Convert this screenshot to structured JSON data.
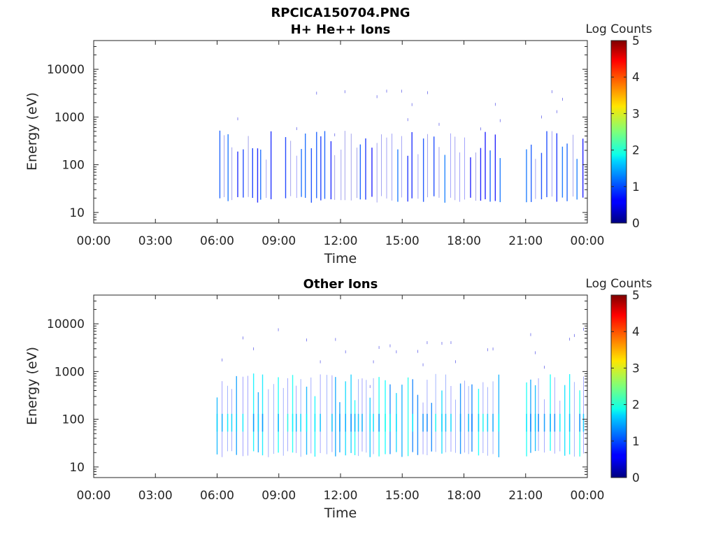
{
  "figure_title": "RPCICA150704.PNG",
  "chart_data": [
    {
      "type": "heatmap",
      "title": "H+ He++ Ions",
      "xlabel": "Time",
      "ylabel": "Energy (eV)",
      "x_ticks": [
        "00:00",
        "03:00",
        "06:00",
        "09:00",
        "12:00",
        "15:00",
        "18:00",
        "21:00",
        "00:00"
      ],
      "x_range_hours": [
        0,
        24
      ],
      "y_scale": "log",
      "y_ticks": [
        10,
        100,
        1000,
        10000
      ],
      "y_ticklabels": [
        "10",
        "100",
        "1000",
        "10000"
      ],
      "y_range": [
        6,
        40000
      ],
      "colorbar": {
        "label": "Log Counts",
        "range": [
          0,
          5
        ],
        "ticks": [
          "0",
          "1",
          "2",
          "3",
          "4",
          "5"
        ],
        "colormap": "jet"
      },
      "activity_intervals_hours": [
        [
          6.1,
          8.6
        ],
        [
          9.3,
          19.8
        ],
        [
          21.0,
          23.9
        ]
      ],
      "typical_level": 0.6,
      "peak_level": 1.2
    },
    {
      "type": "heatmap",
      "title": "Other Ions",
      "xlabel": "Time",
      "ylabel": "Energy (eV)",
      "x_ticks": [
        "00:00",
        "03:00",
        "06:00",
        "09:00",
        "12:00",
        "15:00",
        "18:00",
        "21:00",
        "00:00"
      ],
      "x_range_hours": [
        0,
        24
      ],
      "y_scale": "log",
      "y_ticks": [
        10,
        100,
        1000,
        10000
      ],
      "y_ticklabels": [
        "10",
        "100",
        "1000",
        "10000"
      ],
      "y_range": [
        6,
        40000
      ],
      "colorbar": {
        "label": "Log Counts",
        "range": [
          0,
          5
        ],
        "ticks": [
          "0",
          "1",
          "2",
          "3",
          "4",
          "5"
        ],
        "colormap": "jet"
      },
      "activity_intervals_hours": [
        [
          6.0,
          19.8
        ],
        [
          21.0,
          24.0
        ]
      ],
      "typical_level": 1.2,
      "peak_level": 2.0
    }
  ]
}
